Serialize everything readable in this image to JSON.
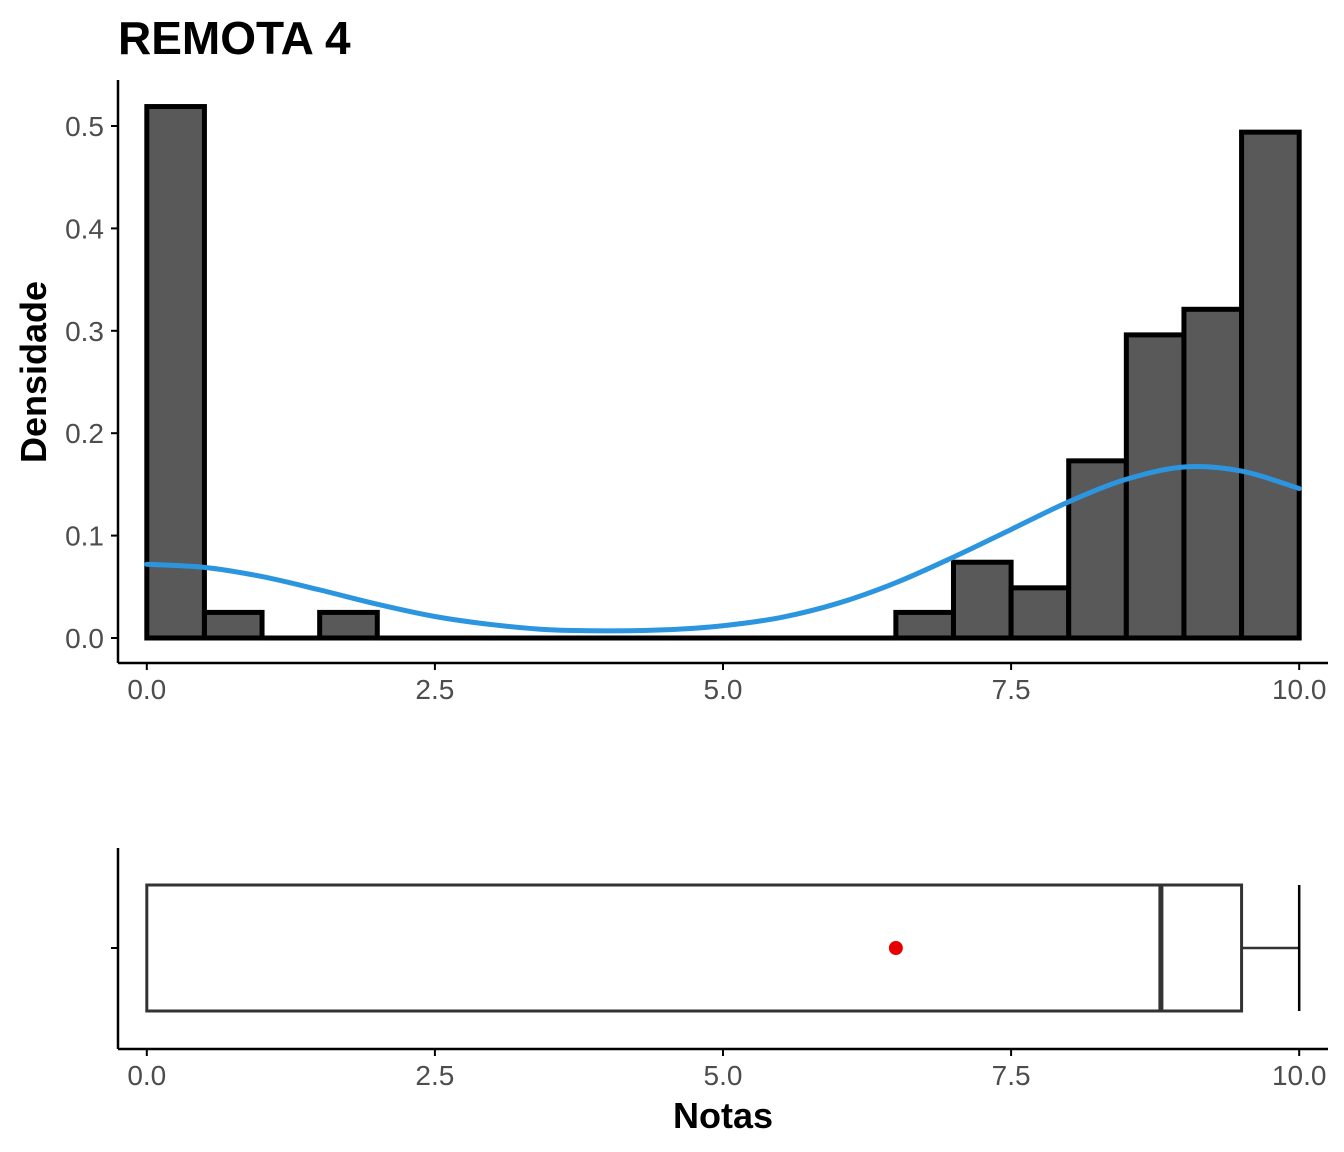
{
  "chart_data": [
    {
      "type": "histogram",
      "title": "REMOTA 4",
      "ylabel": "Densidade",
      "xlabel": "",
      "xlim": [
        -0.25,
        10.25
      ],
      "ylim": [
        0,
        0.54
      ],
      "x_ticks": [
        "0.0",
        "2.5",
        "5.0",
        "7.5",
        "10.0"
      ],
      "y_ticks": [
        "0.0",
        "0.1",
        "0.2",
        "0.3",
        "0.4",
        "0.5"
      ],
      "bin_width": 0.5,
      "bins": [
        {
          "start": 0.0,
          "density": 0.519
        },
        {
          "start": 0.5,
          "density": 0.025
        },
        {
          "start": 1.0,
          "density": 0.0
        },
        {
          "start": 1.5,
          "density": 0.025
        },
        {
          "start": 2.0,
          "density": 0.0
        },
        {
          "start": 2.5,
          "density": 0.0
        },
        {
          "start": 3.0,
          "density": 0.0
        },
        {
          "start": 3.5,
          "density": 0.0
        },
        {
          "start": 4.0,
          "density": 0.0
        },
        {
          "start": 4.5,
          "density": 0.0
        },
        {
          "start": 5.0,
          "density": 0.0
        },
        {
          "start": 5.5,
          "density": 0.0
        },
        {
          "start": 6.0,
          "density": 0.0
        },
        {
          "start": 6.5,
          "density": 0.025
        },
        {
          "start": 7.0,
          "density": 0.074
        },
        {
          "start": 7.5,
          "density": 0.049
        },
        {
          "start": 8.0,
          "density": 0.173
        },
        {
          "start": 8.5,
          "density": 0.296
        },
        {
          "start": 9.0,
          "density": 0.321
        },
        {
          "start": 9.5,
          "density": 0.494
        }
      ],
      "bar_fill": "#595959",
      "bar_stroke": "#000000",
      "density_curve": {
        "color": "#2b95e0",
        "points": [
          [
            0.0,
            0.072
          ],
          [
            0.5,
            0.069
          ],
          [
            1.0,
            0.06
          ],
          [
            1.5,
            0.047
          ],
          [
            2.0,
            0.033
          ],
          [
            2.5,
            0.021
          ],
          [
            3.0,
            0.013
          ],
          [
            3.5,
            0.008
          ],
          [
            4.0,
            0.007
          ],
          [
            4.5,
            0.008
          ],
          [
            5.0,
            0.012
          ],
          [
            5.5,
            0.02
          ],
          [
            6.0,
            0.034
          ],
          [
            6.5,
            0.054
          ],
          [
            7.0,
            0.079
          ],
          [
            7.5,
            0.106
          ],
          [
            8.0,
            0.133
          ],
          [
            8.5,
            0.155
          ],
          [
            9.0,
            0.167
          ],
          [
            9.5,
            0.163
          ],
          [
            10.0,
            0.146
          ]
        ]
      }
    },
    {
      "type": "boxplot",
      "xlabel": "Notas",
      "xlim": [
        -0.25,
        10.25
      ],
      "x_ticks": [
        "0.0",
        "2.5",
        "5.0",
        "7.5",
        "10.0"
      ],
      "min": 0.0,
      "q1": 0.0,
      "median": 8.8,
      "q3": 9.5,
      "max": 10.0,
      "mean": 6.5,
      "mean_color": "#e60000",
      "box_stroke": "#333333"
    }
  ]
}
